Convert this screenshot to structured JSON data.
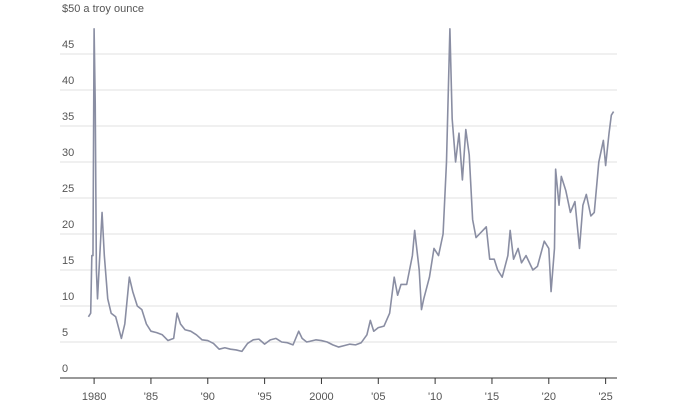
{
  "chart_data": {
    "type": "line",
    "x": [
      1979.5,
      1979.7,
      1979.8,
      1979.9,
      1980.0,
      1980.1,
      1980.2,
      1980.3,
      1980.5,
      1980.7,
      1980.9,
      1981.2,
      1981.5,
      1981.9,
      1982.4,
      1982.7,
      1983.1,
      1983.4,
      1983.8,
      1984.2,
      1984.6,
      1985.0,
      1985.5,
      1986.0,
      1986.5,
      1987.0,
      1987.3,
      1987.6,
      1988.0,
      1988.5,
      1989.0,
      1989.5,
      1990.0,
      1990.5,
      1991.0,
      1991.5,
      1992.0,
      1992.5,
      1993.0,
      1993.5,
      1994.0,
      1994.5,
      1995.0,
      1995.5,
      1996.0,
      1996.5,
      1997.0,
      1997.5,
      1998.0,
      1998.3,
      1998.7,
      1999.0,
      1999.5,
      2000.0,
      2000.5,
      2001.0,
      2001.5,
      2002.0,
      2002.5,
      2003.0,
      2003.5,
      2004.0,
      2004.3,
      2004.6,
      2005.0,
      2005.5,
      2006.0,
      2006.4,
      2006.7,
      2007.0,
      2007.5,
      2008.0,
      2008.2,
      2008.6,
      2008.8,
      2009.0,
      2009.5,
      2009.9,
      2010.3,
      2010.7,
      2011.0,
      2011.3,
      2011.5,
      2011.8,
      2012.1,
      2012.4,
      2012.7,
      2013.0,
      2013.3,
      2013.6,
      2013.9,
      2014.2,
      2014.5,
      2014.8,
      2015.2,
      2015.5,
      2015.9,
      2016.4,
      2016.6,
      2016.9,
      2017.3,
      2017.6,
      2018.0,
      2018.6,
      2019.0,
      2019.6,
      2020.0,
      2020.2,
      2020.5,
      2020.6,
      2020.9,
      2021.1,
      2021.5,
      2021.9,
      2022.3,
      2022.7,
      2023.0,
      2023.3,
      2023.7,
      2024.0,
      2024.4,
      2024.8,
      2025.0,
      2025.3,
      2025.5,
      2025.7
    ],
    "series": [
      {
        "color": "#8a8ea3",
        "values": [
          8.5,
          9,
          17,
          17,
          48.5,
          38,
          15,
          11,
          17,
          23,
          17,
          11,
          9,
          8.5,
          5.5,
          7.5,
          14,
          12,
          10,
          9.5,
          7.5,
          6.5,
          6.3,
          6,
          5.2,
          5.5,
          9,
          7.5,
          6.7,
          6.5,
          6,
          5.3,
          5.2,
          4.8,
          4,
          4.2,
          4,
          3.9,
          3.7,
          4.8,
          5.3,
          5.4,
          4.7,
          5.3,
          5.5,
          5,
          4.9,
          4.6,
          6.5,
          5.5,
          5,
          5.1,
          5.3,
          5.2,
          5,
          4.6,
          4.3,
          4.5,
          4.7,
          4.6,
          4.9,
          6,
          8,
          6.5,
          7,
          7.2,
          9,
          14,
          11.5,
          13,
          13,
          17,
          20.5,
          15,
          9.5,
          11,
          14,
          18,
          17,
          20,
          30,
          48.5,
          36,
          30,
          34,
          27.5,
          34.5,
          31,
          22,
          19.5,
          20,
          20.5,
          21,
          16.5,
          16.5,
          15,
          14,
          17,
          20.5,
          16.5,
          18,
          16,
          17,
          15,
          15.5,
          19,
          18,
          12,
          18,
          29,
          24,
          28,
          26,
          23,
          24.5,
          18,
          24,
          25.5,
          22.5,
          23,
          30,
          33,
          29.5,
          34,
          36.5,
          37
        ]
      }
    ],
    "xlim": [
      1977,
      2026
    ],
    "xticks": [
      1980,
      {
        "value": 1985,
        "label": "'85"
      },
      {
        "value": 1990,
        "label": "'90"
      },
      {
        "value": 1995,
        "label": "'95"
      },
      2000,
      {
        "value": 2005,
        "label": "'05"
      },
      {
        "value": 2010,
        "label": "'10"
      },
      {
        "value": 2015,
        "label": "'15"
      },
      {
        "value": 2020,
        "label": "'20"
      },
      {
        "value": 2025,
        "label": "'25"
      }
    ],
    "ylim": [
      0,
      50
    ],
    "yticks": [
      0,
      5,
      10,
      15,
      20,
      25,
      30,
      35,
      40,
      45,
      {
        "value": 50,
        "label": "$50 a troy ounce"
      }
    ],
    "grid": true
  }
}
